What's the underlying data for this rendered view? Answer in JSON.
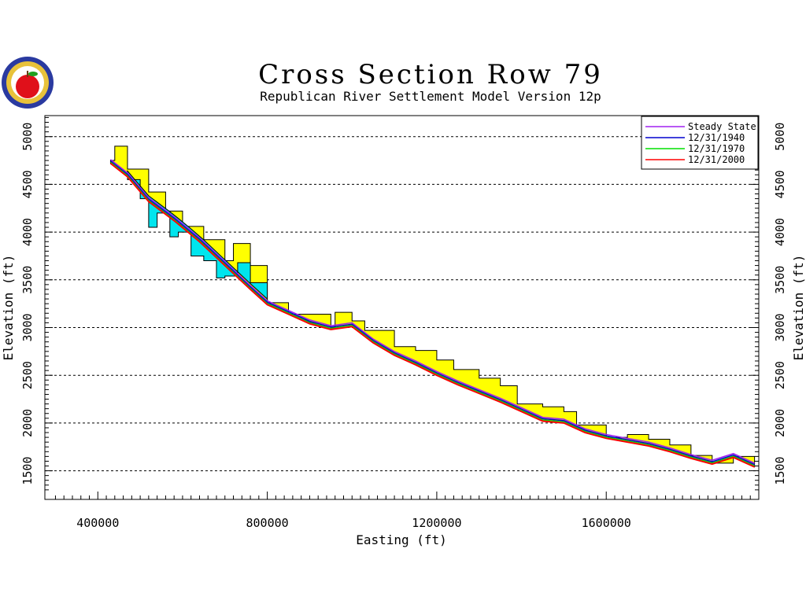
{
  "logo": {
    "name": "apple-seal-logo"
  },
  "chart_data": {
    "type": "line",
    "title": "Cross Section Row 79",
    "subtitle": "Republican River Settlement Model Version 12p",
    "xlabel": "Easting (ft)",
    "ylabel": "Elevation (ft)",
    "xlim": [
      275000,
      1960000
    ],
    "ylim": [
      1200,
      5220
    ],
    "x_ticks": [
      400000,
      800000,
      1200000,
      1600000
    ],
    "x_tick_labels": [
      "400000",
      "800000",
      "1200000",
      "1600000"
    ],
    "y_ticks": [
      1500,
      2000,
      2500,
      3000,
      3500,
      4000,
      4500,
      5000
    ],
    "y_tick_labels": [
      "1500",
      "2000",
      "2500",
      "3000",
      "3500",
      "4000",
      "4500",
      "5000"
    ],
    "grid": "horizontal dashed",
    "legend_position": "top-right",
    "colors": {
      "steady_state": "#a020f0",
      "y1940": "#0000cd",
      "y1970": "#00e000",
      "y2000": "#ff0000",
      "land_surface_fill": "#ffff00",
      "aquifer_bottom_fill": "#00e5ee"
    },
    "series": [
      {
        "name": "Steady State",
        "color": "#a020f0"
      },
      {
        "name": "12/31/1940",
        "color": "#0000cd"
      },
      {
        "name": "12/31/1970",
        "color": "#00e000"
      },
      {
        "name": "12/31/2000",
        "color": "#ff0000"
      }
    ],
    "water_table_2000": {
      "x": [
        430000,
        470000,
        520000,
        580000,
        640000,
        700000,
        760000,
        800000,
        850000,
        900000,
        950000,
        1000000,
        1050000,
        1100000,
        1150000,
        1200000,
        1250000,
        1300000,
        1350000,
        1400000,
        1450000,
        1500000,
        1550000,
        1600000,
        1650000,
        1700000,
        1750000,
        1800000,
        1850000,
        1900000,
        1950000
      ],
      "y": [
        4720,
        4580,
        4320,
        4120,
        3900,
        3650,
        3400,
        3240,
        3140,
        3040,
        2980,
        3010,
        2840,
        2710,
        2610,
        2500,
        2400,
        2310,
        2220,
        2120,
        2020,
        2000,
        1900,
        1840,
        1800,
        1760,
        1700,
        1630,
        1570,
        1640,
        1540
      ]
    },
    "land_surface_top": {
      "x": [
        430000,
        440000,
        470000,
        520000,
        560000,
        600000,
        650000,
        700000,
        720000,
        760000,
        800000,
        850000,
        950000,
        960000,
        1000000,
        1030000,
        1100000,
        1150000,
        1200000,
        1240000,
        1300000,
        1350000,
        1390000,
        1450000,
        1500000,
        1530000,
        1600000,
        1650000,
        1700000,
        1750000,
        1800000,
        1850000,
        1900000,
        1950000
      ],
      "y": [
        4750,
        4900,
        4660,
        4420,
        4220,
        4060,
        3920,
        3700,
        3880,
        3650,
        3260,
        3140,
        3000,
        3160,
        3070,
        2970,
        2800,
        2760,
        2660,
        2560,
        2470,
        2390,
        2200,
        2170,
        2120,
        1980,
        1850,
        1880,
        1830,
        1770,
        1660,
        1580,
        1650,
        1600
      ]
    },
    "aquifer_bottom": {
      "x": [
        470000,
        500000,
        520000,
        540000,
        570000,
        590000,
        620000,
        650000,
        680000,
        700000,
        730000,
        760000,
        800000
      ],
      "y": [
        4550,
        4350,
        4050,
        4200,
        3950,
        4000,
        3750,
        3700,
        3520,
        3540,
        3680,
        3470,
        3250
      ]
    }
  }
}
